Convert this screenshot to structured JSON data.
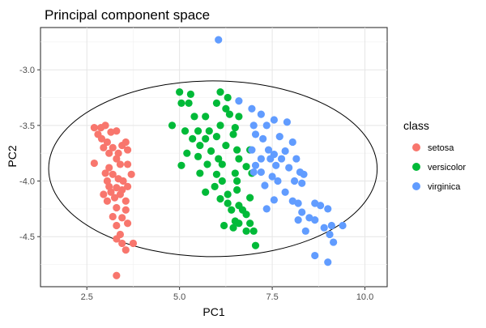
{
  "chart_data": {
    "type": "scatter",
    "title": "Principal component space",
    "xlabel": "PC1",
    "ylabel": "PC2",
    "xlim": [
      1.25,
      10.6
    ],
    "ylim": [
      -4.95,
      -2.62
    ],
    "x_ticks": [
      2.5,
      5.0,
      7.5,
      10.0
    ],
    "x_tick_labels": [
      "2.5",
      "5.0",
      "7.5",
      "10.0"
    ],
    "y_ticks": [
      -4.5,
      -4.0,
      -3.5,
      -3.0
    ],
    "y_tick_labels": [
      "-4.5",
      "-4.0",
      "-3.5",
      "-3.0"
    ],
    "grid": true,
    "legend": {
      "title": "class",
      "position": "right"
    },
    "series": [
      {
        "name": "setosa",
        "color": "#F8766D",
        "points": [
          [
            2.7,
            -3.52
          ],
          [
            2.88,
            -3.52
          ],
          [
            3.0,
            -3.5
          ],
          [
            3.3,
            -3.55
          ],
          [
            2.8,
            -3.58
          ],
          [
            3.15,
            -3.56
          ],
          [
            2.9,
            -3.62
          ],
          [
            3.05,
            -3.65
          ],
          [
            3.2,
            -3.7
          ],
          [
            3.55,
            -3.65
          ],
          [
            3.6,
            -3.72
          ],
          [
            2.95,
            -3.7
          ],
          [
            3.1,
            -3.75
          ],
          [
            3.35,
            -3.75
          ],
          [
            3.45,
            -3.68
          ],
          [
            2.7,
            -3.84
          ],
          [
            3.3,
            -3.8
          ],
          [
            3.1,
            -3.88
          ],
          [
            3.4,
            -3.85
          ],
          [
            3.6,
            -3.85
          ],
          [
            3.0,
            -3.93
          ],
          [
            3.2,
            -3.94
          ],
          [
            3.7,
            -3.94
          ],
          [
            3.05,
            -4.0
          ],
          [
            3.35,
            -3.98
          ],
          [
            3.48,
            -4.0
          ],
          [
            3.1,
            -4.05
          ],
          [
            3.3,
            -4.06
          ],
          [
            3.45,
            -4.08
          ],
          [
            3.6,
            -4.05
          ],
          [
            2.95,
            -4.12
          ],
          [
            3.15,
            -4.1
          ],
          [
            3.4,
            -4.12
          ],
          [
            3.05,
            -4.18
          ],
          [
            3.25,
            -4.15
          ],
          [
            3.55,
            -4.18
          ],
          [
            3.3,
            -4.24
          ],
          [
            3.55,
            -4.26
          ],
          [
            3.2,
            -4.32
          ],
          [
            3.45,
            -4.33
          ],
          [
            3.3,
            -4.4
          ],
          [
            3.6,
            -4.38
          ],
          [
            3.4,
            -4.48
          ],
          [
            3.3,
            -4.52
          ],
          [
            3.45,
            -4.56
          ],
          [
            3.75,
            -4.56
          ],
          [
            3.55,
            -4.62
          ],
          [
            3.3,
            -4.85
          ]
        ]
      },
      {
        "name": "versicolor",
        "color": "#00BA38",
        "points": [
          [
            5.0,
            -3.2
          ],
          [
            5.3,
            -3.22
          ],
          [
            5.25,
            -3.3
          ],
          [
            5.05,
            -3.3
          ],
          [
            6.1,
            -3.2
          ],
          [
            6.3,
            -3.25
          ],
          [
            6.0,
            -3.3
          ],
          [
            6.25,
            -3.35
          ],
          [
            4.8,
            -3.5
          ],
          [
            5.4,
            -3.42
          ],
          [
            5.7,
            -3.42
          ],
          [
            6.35,
            -3.4
          ],
          [
            6.6,
            -3.42
          ],
          [
            5.15,
            -3.55
          ],
          [
            5.5,
            -3.55
          ],
          [
            5.8,
            -3.55
          ],
          [
            6.1,
            -3.5
          ],
          [
            6.5,
            -3.52
          ],
          [
            5.35,
            -3.62
          ],
          [
            5.7,
            -3.62
          ],
          [
            6.0,
            -3.6
          ],
          [
            6.45,
            -3.58
          ],
          [
            5.55,
            -3.68
          ],
          [
            6.25,
            -3.68
          ],
          [
            5.2,
            -3.75
          ],
          [
            5.85,
            -3.73
          ],
          [
            6.55,
            -3.72
          ],
          [
            6.9,
            -3.72
          ],
          [
            5.5,
            -3.78
          ],
          [
            6.05,
            -3.8
          ],
          [
            6.6,
            -3.8
          ],
          [
            5.05,
            -3.86
          ],
          [
            5.75,
            -3.85
          ],
          [
            6.15,
            -3.85
          ],
          [
            6.8,
            -3.87
          ],
          [
            5.55,
            -3.93
          ],
          [
            6.0,
            -3.94
          ],
          [
            6.5,
            -3.93
          ],
          [
            6.95,
            -3.93
          ],
          [
            6.15,
            -4.0
          ],
          [
            6.55,
            -4.0
          ],
          [
            5.95,
            -4.05
          ],
          [
            6.55,
            -4.08
          ],
          [
            5.7,
            -4.1
          ],
          [
            6.3,
            -4.12
          ],
          [
            6.1,
            -4.16
          ],
          [
            6.9,
            -4.15
          ],
          [
            6.3,
            -4.2
          ],
          [
            6.6,
            -4.22
          ],
          [
            6.4,
            -4.26
          ],
          [
            6.7,
            -4.26
          ],
          [
            6.8,
            -4.3
          ],
          [
            6.5,
            -4.36
          ],
          [
            6.2,
            -4.4
          ],
          [
            6.6,
            -4.38
          ],
          [
            6.9,
            -4.38
          ],
          [
            6.45,
            -4.42
          ],
          [
            6.8,
            -4.45
          ],
          [
            7.0,
            -4.45
          ],
          [
            7.05,
            -4.58
          ]
        ]
      },
      {
        "name": "virginica",
        "color": "#619CFF",
        "points": [
          [
            6.05,
            -2.73
          ],
          [
            6.6,
            -3.28
          ],
          [
            6.95,
            -3.35
          ],
          [
            7.2,
            -3.4
          ],
          [
            7.35,
            -3.5
          ],
          [
            7.0,
            -3.5
          ],
          [
            7.55,
            -3.45
          ],
          [
            7.9,
            -3.47
          ],
          [
            7.05,
            -3.58
          ],
          [
            7.7,
            -3.6
          ],
          [
            7.25,
            -3.62
          ],
          [
            8.05,
            -3.65
          ],
          [
            6.95,
            -3.72
          ],
          [
            7.4,
            -3.72
          ],
          [
            7.85,
            -3.73
          ],
          [
            7.55,
            -3.76
          ],
          [
            7.2,
            -3.8
          ],
          [
            7.45,
            -3.8
          ],
          [
            7.75,
            -3.8
          ],
          [
            8.15,
            -3.8
          ],
          [
            7.05,
            -3.86
          ],
          [
            7.6,
            -3.86
          ],
          [
            7.0,
            -3.92
          ],
          [
            7.2,
            -3.92
          ],
          [
            7.95,
            -3.88
          ],
          [
            8.25,
            -3.92
          ],
          [
            7.5,
            -3.96
          ],
          [
            8.35,
            -3.94
          ],
          [
            7.65,
            -4.0
          ],
          [
            8.1,
            -4.0
          ],
          [
            8.3,
            -4.02
          ],
          [
            7.3,
            -4.04
          ],
          [
            7.85,
            -4.1
          ],
          [
            7.55,
            -4.17
          ],
          [
            8.05,
            -4.18
          ],
          [
            7.35,
            -4.25
          ],
          [
            8.2,
            -4.2
          ],
          [
            8.65,
            -4.2
          ],
          [
            8.8,
            -4.22
          ],
          [
            8.3,
            -4.28
          ],
          [
            9.0,
            -4.25
          ],
          [
            8.5,
            -4.33
          ],
          [
            8.2,
            -4.35
          ],
          [
            8.65,
            -4.35
          ],
          [
            8.9,
            -4.42
          ],
          [
            9.1,
            -4.4
          ],
          [
            9.4,
            -4.4
          ],
          [
            8.4,
            -4.45
          ],
          [
            9.05,
            -4.48
          ],
          [
            9.15,
            -4.55
          ],
          [
            8.65,
            -4.67
          ],
          [
            9.0,
            -4.73
          ]
        ]
      }
    ],
    "ellipse": {
      "cx": 5.9,
      "cy": -3.89,
      "rx": 4.43,
      "ry": 0.79,
      "color": "#000000"
    }
  }
}
